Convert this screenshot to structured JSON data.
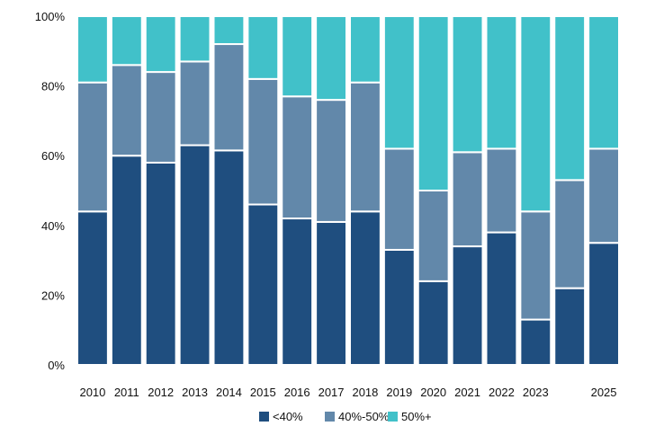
{
  "chart_data": {
    "type": "bar",
    "stacked": true,
    "categories": [
      "2010",
      "2011",
      "2012",
      "2013",
      "2014",
      "2015",
      "2016",
      "2017",
      "2018",
      "2019",
      "2020",
      "2021",
      "2022",
      "2023",
      "",
      "2025"
    ],
    "series": [
      {
        "name": "<40%",
        "color": "#1f4e7f",
        "values": [
          44,
          60,
          58,
          63,
          61.5,
          46,
          42,
          41,
          44,
          33,
          24,
          34,
          38,
          13,
          22,
          35
        ]
      },
      {
        "name": "40%-50%",
        "color": "#6288aa",
        "values": [
          37,
          26,
          26,
          24,
          30.5,
          36,
          35,
          35,
          37,
          29,
          26,
          27,
          24,
          31,
          31,
          27
        ]
      },
      {
        "name": "50%+",
        "color": "#41c1c9",
        "values": [
          19,
          14,
          16,
          13,
          8,
          18,
          23,
          24,
          19,
          38,
          50,
          39,
          38,
          56,
          47,
          38
        ]
      }
    ],
    "y_ticks": [
      "0%",
      "20%",
      "40%",
      "60%",
      "80%",
      "100%"
    ],
    "ylim": [
      0,
      100
    ],
    "grid": false,
    "legend_position": "bottom-center"
  }
}
